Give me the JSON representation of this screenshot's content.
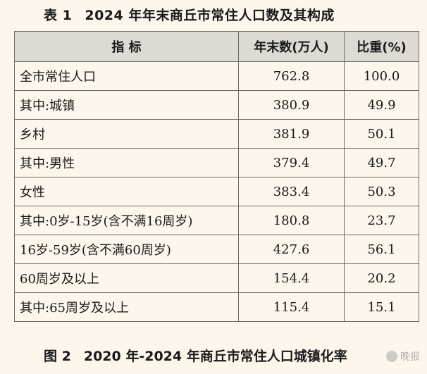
{
  "table_title": {
    "label": "表 1",
    "text": "2024 年年末商丘市常住人口数及其构成"
  },
  "columns": [
    "指  标",
    "年末数(万人)",
    "比重(%)"
  ],
  "rows": [
    {
      "indicator": "全市常住人口",
      "value": "762.8",
      "share": "100.0"
    },
    {
      "indicator": "其中:城镇",
      "value": "380.9",
      "share": "49.9"
    },
    {
      "indicator": "乡村",
      "value": "381.9",
      "share": "50.1"
    },
    {
      "indicator": "其中:男性",
      "value": "379.4",
      "share": "49.7"
    },
    {
      "indicator": "女性",
      "value": "383.4",
      "share": "50.3"
    },
    {
      "indicator": "其中:0岁-15岁(含不满16周岁)",
      "value": "180.8",
      "share": "23.7"
    },
    {
      "indicator": "16岁-59岁(含不满60周岁)",
      "value": "427.6",
      "share": "56.1"
    },
    {
      "indicator": "60周岁及以上",
      "value": "154.4",
      "share": "20.2"
    },
    {
      "indicator": "其中:65周岁及以上",
      "value": "115.4",
      "share": "15.1"
    }
  ],
  "figure_title": {
    "label": "图 2",
    "text": "2020 年-2024 年商丘市常住人口城镇化率"
  },
  "watermark": {
    "text": "晚报",
    "icon": "logo-icon"
  }
}
